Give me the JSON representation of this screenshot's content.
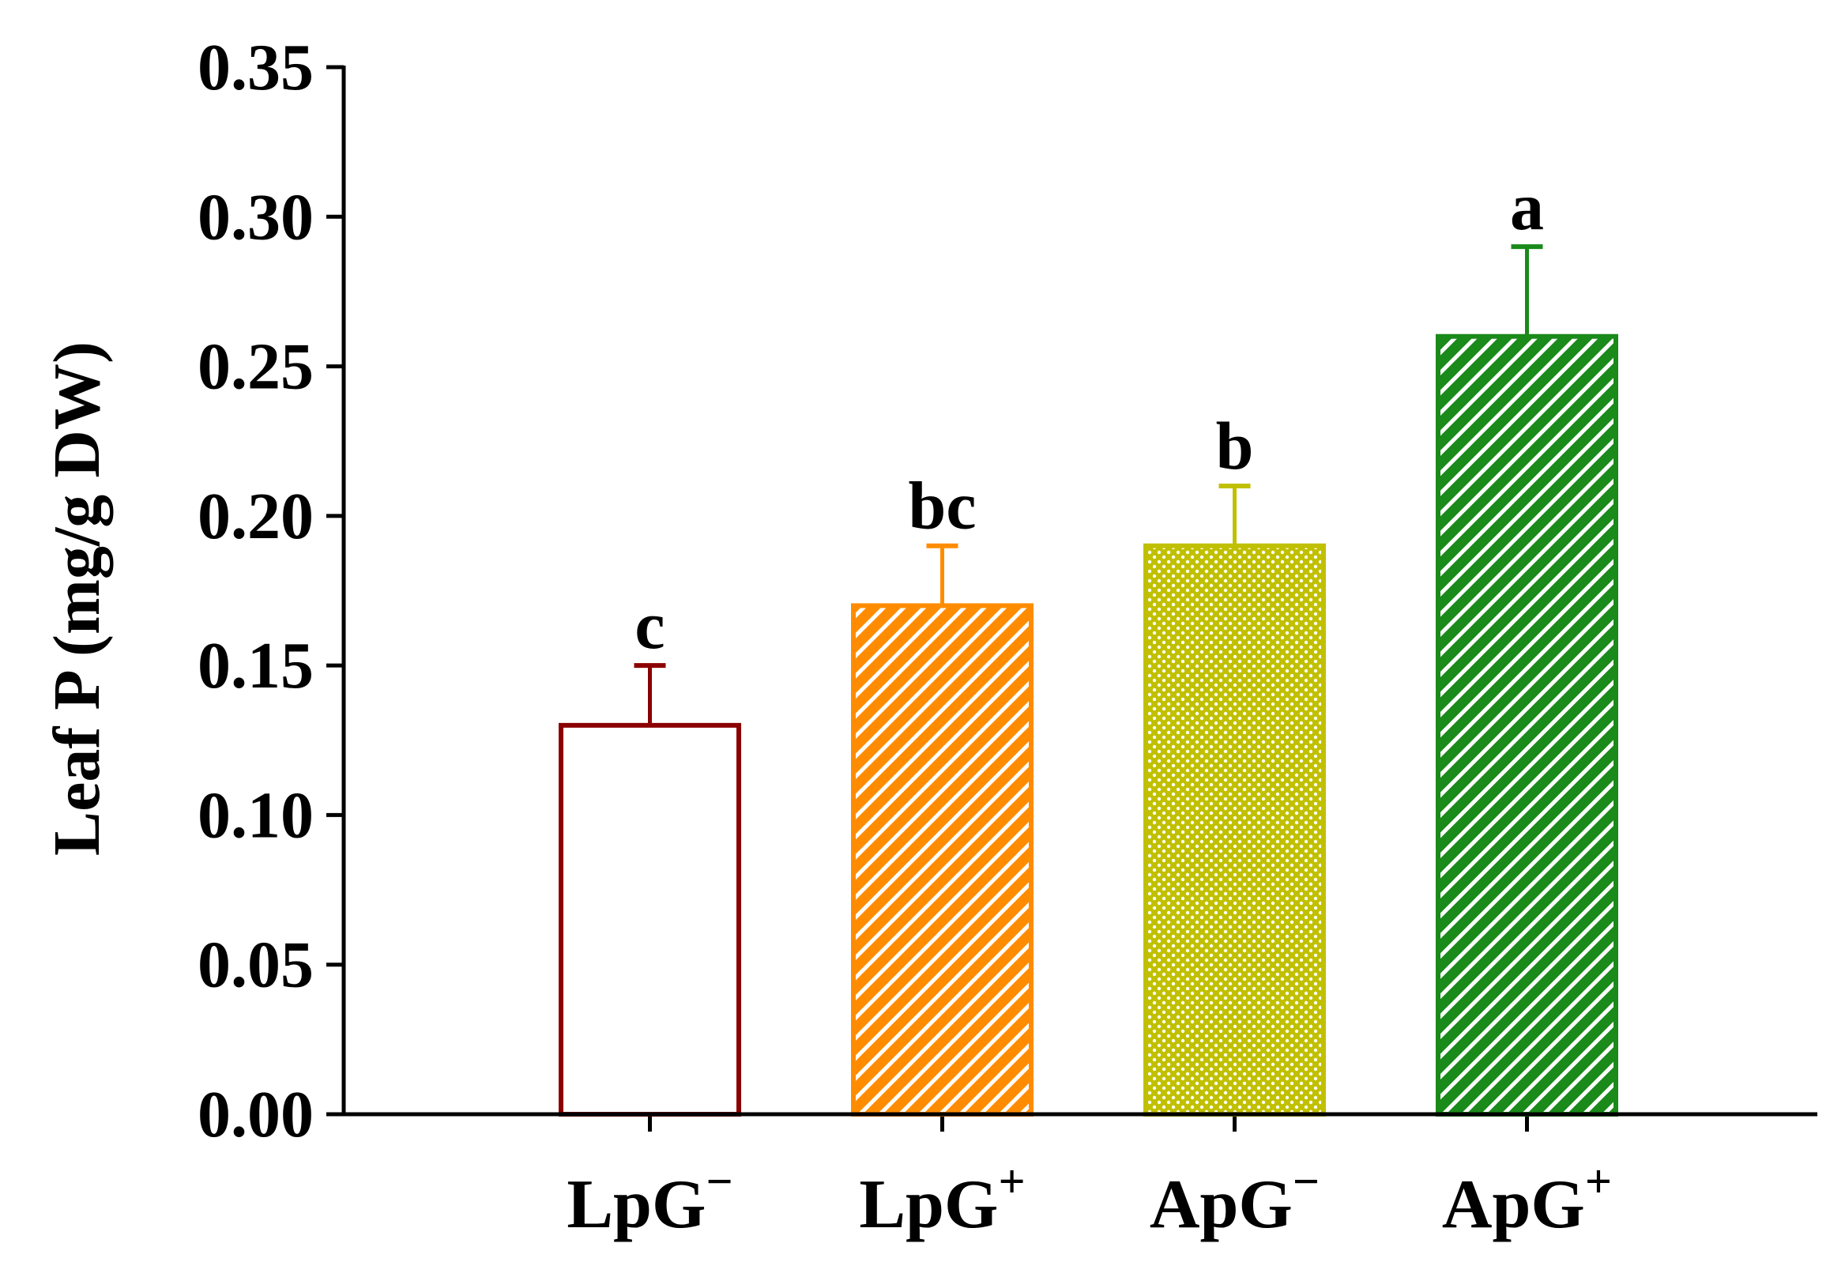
{
  "chart_data": {
    "type": "bar",
    "title": "",
    "xlabel": "",
    "ylabel": "Leaf P (mg/g DW)",
    "ylim": [
      0,
      0.35
    ],
    "yticks": [
      "0.00",
      "0.05",
      "0.10",
      "0.15",
      "0.20",
      "0.25",
      "0.30",
      "0.35"
    ],
    "grid": false,
    "legend": "none",
    "categories": [
      {
        "base": "LpG",
        "sup": "−"
      },
      {
        "base": "LpG",
        "sup": "+"
      },
      {
        "base": "ApG",
        "sup": "−"
      },
      {
        "base": "ApG",
        "sup": "+"
      }
    ],
    "values": [
      0.13,
      0.17,
      0.19,
      0.26
    ],
    "errors": [
      0.02,
      0.02,
      0.02,
      0.03
    ],
    "significance": [
      "c",
      "bc",
      "b",
      "a"
    ],
    "bar_styles": [
      {
        "pattern": "none",
        "color": "#8b0000"
      },
      {
        "pattern": "diagonal",
        "color": "#ff8c00"
      },
      {
        "pattern": "dots",
        "color": "#c0c000"
      },
      {
        "pattern": "diagonal",
        "color": "#1a8a1a"
      }
    ]
  }
}
